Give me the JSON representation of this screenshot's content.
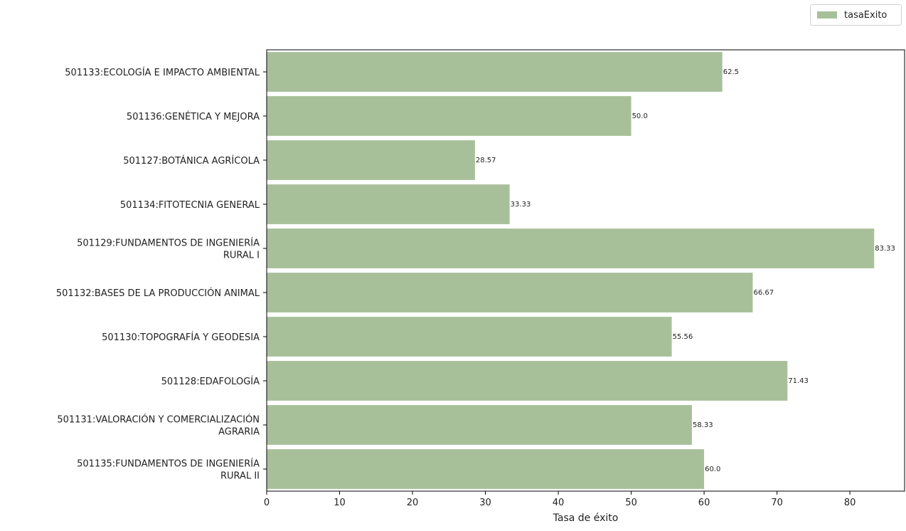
{
  "chart_data": {
    "type": "bar",
    "orientation": "horizontal",
    "categories": [
      "501133:ECOLOGÍA E IMPACTO AMBIENTAL",
      "501136:GENÉTICA Y MEJORA",
      "501127:BOTÁNICA AGRÍCOLA",
      "501134:FITOTECNIA GENERAL",
      "501129:FUNDAMENTOS DE INGENIERÍA RURAL I",
      "501132:BASES DE LA PRODUCCIÓN ANIMAL",
      "501130:TOPOGRAFÍA Y GEODESIA",
      "501128:EDAFOLOGÍA",
      "501131:VALORACIÓN Y COMERCIALIZACIÓN AGRARIA",
      "501135:FUNDAMENTOS DE INGENIERÍA RURAL II"
    ],
    "category_lines": [
      [
        "501133:ECOLOGÍA E IMPACTO AMBIENTAL"
      ],
      [
        "501136:GENÉTICA Y MEJORA"
      ],
      [
        "501127:BOTÁNICA AGRÍCOLA"
      ],
      [
        "501134:FITOTECNIA GENERAL"
      ],
      [
        "501129:FUNDAMENTOS DE INGENIERÍA",
        "RURAL I"
      ],
      [
        "501132:BASES DE LA PRODUCCIÓN ANIMAL"
      ],
      [
        "501130:TOPOGRAFÍA Y GEODESIA"
      ],
      [
        "501128:EDAFOLOGÍA"
      ],
      [
        "501131:VALORACIÓN Y COMERCIALIZACIÓN",
        "AGRARIA"
      ],
      [
        "501135:FUNDAMENTOS DE INGENIERÍA",
        "RURAL II"
      ]
    ],
    "series": [
      {
        "name": "tasaExito",
        "values": [
          62.5,
          50.0,
          28.57,
          33.33,
          83.33,
          66.67,
          55.56,
          71.43,
          58.33,
          60.0
        ],
        "labels": [
          "62.5",
          "50.0",
          "28.57",
          "33.33",
          "83.33",
          "66.67",
          "55.56",
          "71.43",
          "58.33",
          "60.0"
        ],
        "color": "#a8c09a"
      }
    ],
    "xlabel": "Tasa de éxito",
    "ylabel": "",
    "title": "",
    "xlim": [
      0,
      87.5
    ],
    "xticks": [
      0,
      10,
      20,
      30,
      40,
      50,
      60,
      70,
      80
    ],
    "grid": false,
    "legend_position": "top-right"
  }
}
